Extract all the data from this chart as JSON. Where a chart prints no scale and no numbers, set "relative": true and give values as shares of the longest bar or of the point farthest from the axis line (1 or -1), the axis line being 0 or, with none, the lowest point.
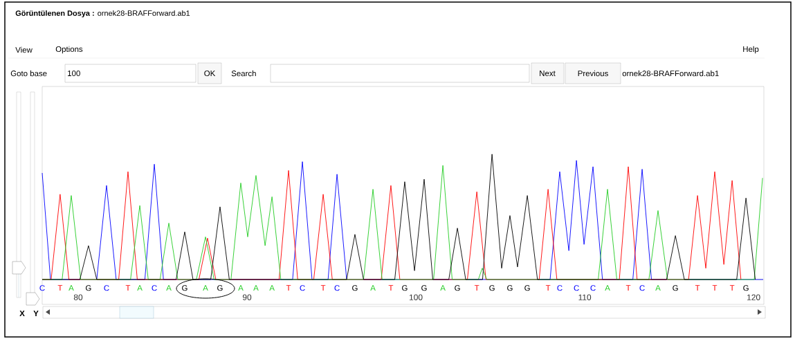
{
  "chart_data": {
    "type": "line",
    "relative": true,
    "title": "**Görüntülenen Dosya :** ornek28-BRAFForward.ab1",
    "xlim": [
      77.87,
      120.57
    ],
    "xticks": [
      80,
      90,
      100,
      110,
      120
    ],
    "series": [
      {
        "color": "#0000ff",
        "x": [
          77.87,
          78.36,
          81.1,
          81.68,
          82.25,
          83.95,
          84.51,
          85.05,
          92.7,
          93.28,
          93.85,
          94.8,
          95.33,
          95.9,
          107.95,
          108.52,
          109.06,
          109.51,
          109.96,
          110.49,
          111.05,
          112.85,
          113.4,
          113.95,
          120.57
        ],
        "values": [
          0.85,
          0,
          0,
          0.75,
          0,
          0,
          0.92,
          0,
          0,
          0.94,
          0,
          0,
          0.84,
          0,
          0,
          0.86,
          0.23,
          0.95,
          0.28,
          0.9,
          0,
          0,
          0.88,
          0,
          0
        ]
      },
      {
        "color": "#ff0000",
        "x": [
          77.87,
          78.4,
          78.93,
          79.45,
          82.4,
          82.95,
          83.5,
          87.15,
          87.66,
          88.15,
          91.9,
          92.46,
          93.0,
          93.95,
          94.51,
          95.05,
          97.95,
          98.52,
          99.05,
          103.05,
          103.61,
          104.15,
          107.3,
          107.83,
          108.35,
          112.05,
          112.58,
          113.1,
          116.15,
          116.68,
          117.17,
          117.7,
          118.24,
          118.73,
          119.25
        ],
        "values": [
          0,
          0,
          0.68,
          0,
          0,
          0.86,
          0,
          0,
          0.33,
          0,
          0,
          0.87,
          0,
          0,
          0.68,
          0,
          0,
          0.75,
          0,
          0,
          0.7,
          0,
          0,
          0.72,
          0,
          0,
          0.9,
          0,
          0,
          0.67,
          0.09,
          0.86,
          0.12,
          0.79,
          0
        ]
      },
      {
        "color": "#22cc22",
        "x": [
          77.87,
          79.05,
          79.59,
          80.15,
          83.1,
          83.65,
          84.15,
          84.85,
          85.37,
          85.9,
          87.0,
          87.54,
          88.05,
          89.05,
          89.63,
          90.04,
          90.53,
          91.07,
          91.48,
          92.0,
          96.9,
          97.46,
          98.0,
          101.05,
          101.6,
          102.15,
          103.7,
          103.93,
          104.2,
          110.8,
          111.35,
          111.9,
          113.8,
          114.34,
          114.9,
          120.04,
          120.53
        ],
        "values": [
          0,
          0,
          0.67,
          0,
          0,
          0.59,
          0,
          0,
          0.45,
          0,
          0,
          0.34,
          0,
          0,
          0.77,
          0.34,
          0.83,
          0.27,
          0.66,
          0,
          0,
          0.72,
          0,
          0,
          0.91,
          0,
          0,
          0.09,
          0,
          0,
          0.72,
          0,
          0,
          0.55,
          0,
          0,
          0.81
        ]
      },
      {
        "color": "#000000",
        "x": [
          77.87,
          80.1,
          80.61,
          81.1,
          85.8,
          86.31,
          86.8,
          87.85,
          88.4,
          88.95,
          95.9,
          96.39,
          96.9,
          98.75,
          99.34,
          99.92,
          100.49,
          101.0,
          101.95,
          102.46,
          102.95,
          103.95,
          104.51,
          105.08,
          105.57,
          106.02,
          106.6,
          107.2,
          114.85,
          115.37,
          115.9,
          119.0,
          119.55,
          120.1
        ],
        "values": [
          0,
          0,
          0.27,
          0,
          0,
          0.38,
          0,
          0,
          0.58,
          0,
          0,
          0.36,
          0,
          0,
          0.78,
          0.07,
          0.8,
          0,
          0,
          0.41,
          0,
          0,
          1.0,
          0.09,
          0.51,
          0.1,
          0.67,
          0,
          0,
          0.35,
          0,
          0,
          0.65,
          0
        ]
      }
    ],
    "annotations": [
      "View",
      "Options",
      "Help",
      "Goto base",
      "100",
      "OK",
      "Search",
      "Next",
      "Previous",
      "ornek28-BRAFForward.ab1",
      "X",
      "Y",
      "C",
      "T",
      "A",
      "G",
      "C",
      "T",
      "A",
      "C",
      "A",
      "G",
      "A",
      "G",
      "A",
      "A",
      "A",
      "T",
      "C",
      "T",
      "C",
      "G",
      "A",
      "T",
      "G",
      "G",
      "A",
      "G",
      "T",
      "G",
      "G",
      "G",
      "T",
      "C",
      "C",
      "C",
      "A",
      "T",
      "C",
      "A",
      "G",
      "T",
      "T",
      "T",
      "G"
    ]
  }
}
